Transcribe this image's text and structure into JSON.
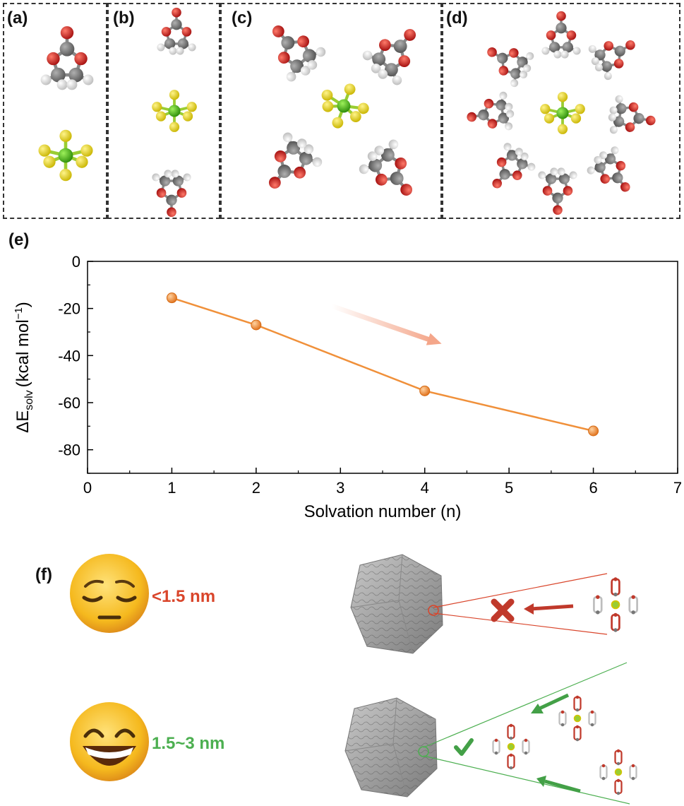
{
  "panels": {
    "a": "(a)",
    "b": "(b)",
    "c": "(c)",
    "d": "(d)",
    "e": "(e)",
    "f": "(f)"
  },
  "chart_data": {
    "type": "line",
    "xlabel": "Solvation number (n)",
    "ylabel": "ΔE",
    "ylabel_sub": "solv",
    "ylabel_unit": "(kcal mol",
    "ylabel_sup": "−1",
    "ylabel_close": ")",
    "xlim": [
      0,
      7
    ],
    "ylim": [
      -90,
      0
    ],
    "xticks": [
      0,
      1,
      2,
      3,
      4,
      5,
      6,
      7
    ],
    "yticks": [
      0,
      -20,
      -40,
      -60,
      -80
    ],
    "xtick_labels": [
      "0",
      "1",
      "2",
      "3",
      "4",
      "5",
      "6",
      "7"
    ],
    "ytick_labels": [
      "0",
      "-20",
      "-40",
      "-60",
      "-80"
    ],
    "x": [
      1,
      2,
      4,
      6
    ],
    "y": [
      -15.5,
      -27,
      -55,
      -72
    ],
    "line_color": "#f0903a",
    "arrow_color": "#f4a68a"
  },
  "pore": {
    "small_label": "<1.5 nm",
    "small_color": "#d9452b",
    "large_label": "1.5~3 nm",
    "large_color": "#4caf50",
    "sad_face_icon": "pensive-face-icon",
    "happy_face_icon": "grinning-face-icon",
    "cross_icon": "cross-mark-icon",
    "check_icon": "check-mark-icon"
  }
}
